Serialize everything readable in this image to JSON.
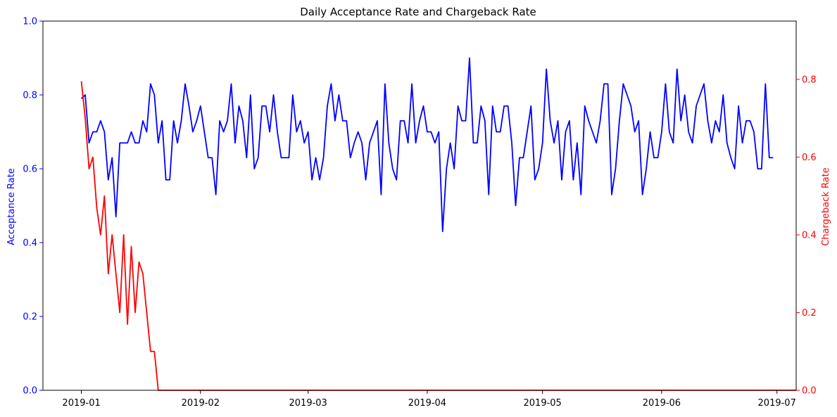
{
  "chart_data": {
    "type": "line",
    "title": "Daily Acceptance Rate and Chargeback Rate",
    "xlabel": "",
    "x_ticks": [
      "2019-01",
      "2019-02",
      "2019-03",
      "2019-04",
      "2019-05",
      "2019-06",
      "2019-07"
    ],
    "x_range": [
      "2018-12-22",
      "2019-07-06"
    ],
    "y_left": {
      "label": "Acceptance Rate",
      "lim": [
        0,
        1.0
      ],
      "ticks": [
        "0.0",
        "0.2",
        "0.4",
        "0.6",
        "0.8",
        "1.0"
      ],
      "color": "#0000ff"
    },
    "y_right": {
      "label": "Chargeback Rate",
      "lim": [
        0,
        0.95
      ],
      "ticks": [
        "0.0",
        "0.2",
        "0.4",
        "0.6",
        "0.8"
      ],
      "color": "#ff0000"
    },
    "grid": false,
    "series": [
      {
        "axis": "left",
        "color": "#0000ff",
        "start_date": "2019-01-01",
        "values": [
          0.79,
          0.8,
          0.67,
          0.7,
          0.7,
          0.73,
          0.7,
          0.57,
          0.63,
          0.47,
          0.67,
          0.67,
          0.67,
          0.7,
          0.67,
          0.67,
          0.73,
          0.7,
          0.83,
          0.8,
          0.67,
          0.73,
          0.57,
          0.57,
          0.73,
          0.67,
          0.73,
          0.83,
          0.77,
          0.7,
          0.73,
          0.77,
          0.7,
          0.63,
          0.63,
          0.53,
          0.73,
          0.7,
          0.73,
          0.83,
          0.67,
          0.77,
          0.73,
          0.63,
          0.8,
          0.6,
          0.63,
          0.77,
          0.77,
          0.7,
          0.8,
          0.7,
          0.63,
          0.63,
          0.63,
          0.8,
          0.7,
          0.73,
          0.67,
          0.7,
          0.57,
          0.63,
          0.57,
          0.63,
          0.77,
          0.83,
          0.73,
          0.8,
          0.73,
          0.73,
          0.63,
          0.67,
          0.7,
          0.67,
          0.57,
          0.67,
          0.7,
          0.73,
          0.53,
          0.83,
          0.67,
          0.6,
          0.57,
          0.73,
          0.73,
          0.67,
          0.83,
          0.67,
          0.73,
          0.77,
          0.7,
          0.7,
          0.67,
          0.7,
          0.43,
          0.6,
          0.67,
          0.6,
          0.77,
          0.73,
          0.73,
          0.9,
          0.67,
          0.67,
          0.77,
          0.73,
          0.53,
          0.77,
          0.7,
          0.7,
          0.77,
          0.77,
          0.67,
          0.5,
          0.63,
          0.63,
          0.7,
          0.77,
          0.57,
          0.6,
          0.67,
          0.87,
          0.73,
          0.67,
          0.73,
          0.57,
          0.7,
          0.73,
          0.57,
          0.67,
          0.53,
          0.77,
          0.73,
          0.7,
          0.67,
          0.73,
          0.83,
          0.83,
          0.53,
          0.6,
          0.73,
          0.83,
          0.8,
          0.77,
          0.7,
          0.73,
          0.53,
          0.6,
          0.7,
          0.63,
          0.63,
          0.7,
          0.83,
          0.7,
          0.67,
          0.87,
          0.73,
          0.8,
          0.7,
          0.67,
          0.77,
          0.8,
          0.83,
          0.73,
          0.67,
          0.73,
          0.7,
          0.8,
          0.67,
          0.63,
          0.6,
          0.77,
          0.67,
          0.73,
          0.73,
          0.7,
          0.6,
          0.6,
          0.83,
          0.63,
          0.63
        ]
      },
      {
        "axis": "right",
        "color": "#ff0000",
        "start_date": "2019-01-01",
        "values": [
          0.795,
          0.7,
          0.57,
          0.6,
          0.47,
          0.4,
          0.5,
          0.3,
          0.4,
          0.3,
          0.2,
          0.4,
          0.17,
          0.37,
          0.2,
          0.33,
          0.3,
          0.2,
          0.1,
          0.1,
          0.0,
          0.0,
          0.0,
          0.0,
          0.0,
          0.0,
          0.0,
          0.0,
          0.0,
          0.0,
          0.0,
          0.0,
          0.0,
          0.0,
          0.0,
          0.0,
          0.0,
          0.0,
          0.0,
          0.0,
          0.0,
          0.0,
          0.0,
          0.0,
          0.0,
          0.0,
          0.0,
          0.0,
          0.0,
          0.0,
          0.0,
          0.0,
          0.0,
          0.0,
          0.0,
          0.0,
          0.0,
          0.0,
          0.0,
          0.0,
          0.0,
          0.0,
          0.0,
          0.0,
          0.0,
          0.0,
          0.0,
          0.0,
          0.0,
          0.0,
          0.0,
          0.0,
          0.0,
          0.0,
          0.0,
          0.0,
          0.0,
          0.0,
          0.0,
          0.0,
          0.0,
          0.0,
          0.0,
          0.0,
          0.0,
          0.0,
          0.0,
          0.0,
          0.0,
          0.0,
          0.0,
          0.0,
          0.0,
          0.0,
          0.0,
          0.0,
          0.0,
          0.0,
          0.0,
          0.0,
          0.0,
          0.0,
          0.0,
          0.0,
          0.0,
          0.0,
          0.0,
          0.0,
          0.0,
          0.0,
          0.0,
          0.0,
          0.0,
          0.0,
          0.0,
          0.0,
          0.0,
          0.0,
          0.0,
          0.0,
          0.0,
          0.0,
          0.0,
          0.0,
          0.0,
          0.0,
          0.0,
          0.0,
          0.0,
          0.0,
          0.0,
          0.0,
          0.0,
          0.0,
          0.0,
          0.0,
          0.0,
          0.0,
          0.0,
          0.0,
          0.0,
          0.0,
          0.0,
          0.0,
          0.0,
          0.0,
          0.0,
          0.0,
          0.0,
          0.0,
          0.0,
          0.0,
          0.0,
          0.0,
          0.0,
          0.0,
          0.0,
          0.0,
          0.0,
          0.0,
          0.0,
          0.0,
          0.0,
          0.0,
          0.0,
          0.0,
          0.0,
          0.0,
          0.0,
          0.0,
          0.0,
          0.0,
          0.0,
          0.0,
          0.0,
          0.0,
          0.0,
          0.0,
          0.0,
          0.0,
          0.0,
          0.0,
          0.0,
          0.0,
          0.0,
          0.0,
          0.0
        ]
      }
    ]
  }
}
